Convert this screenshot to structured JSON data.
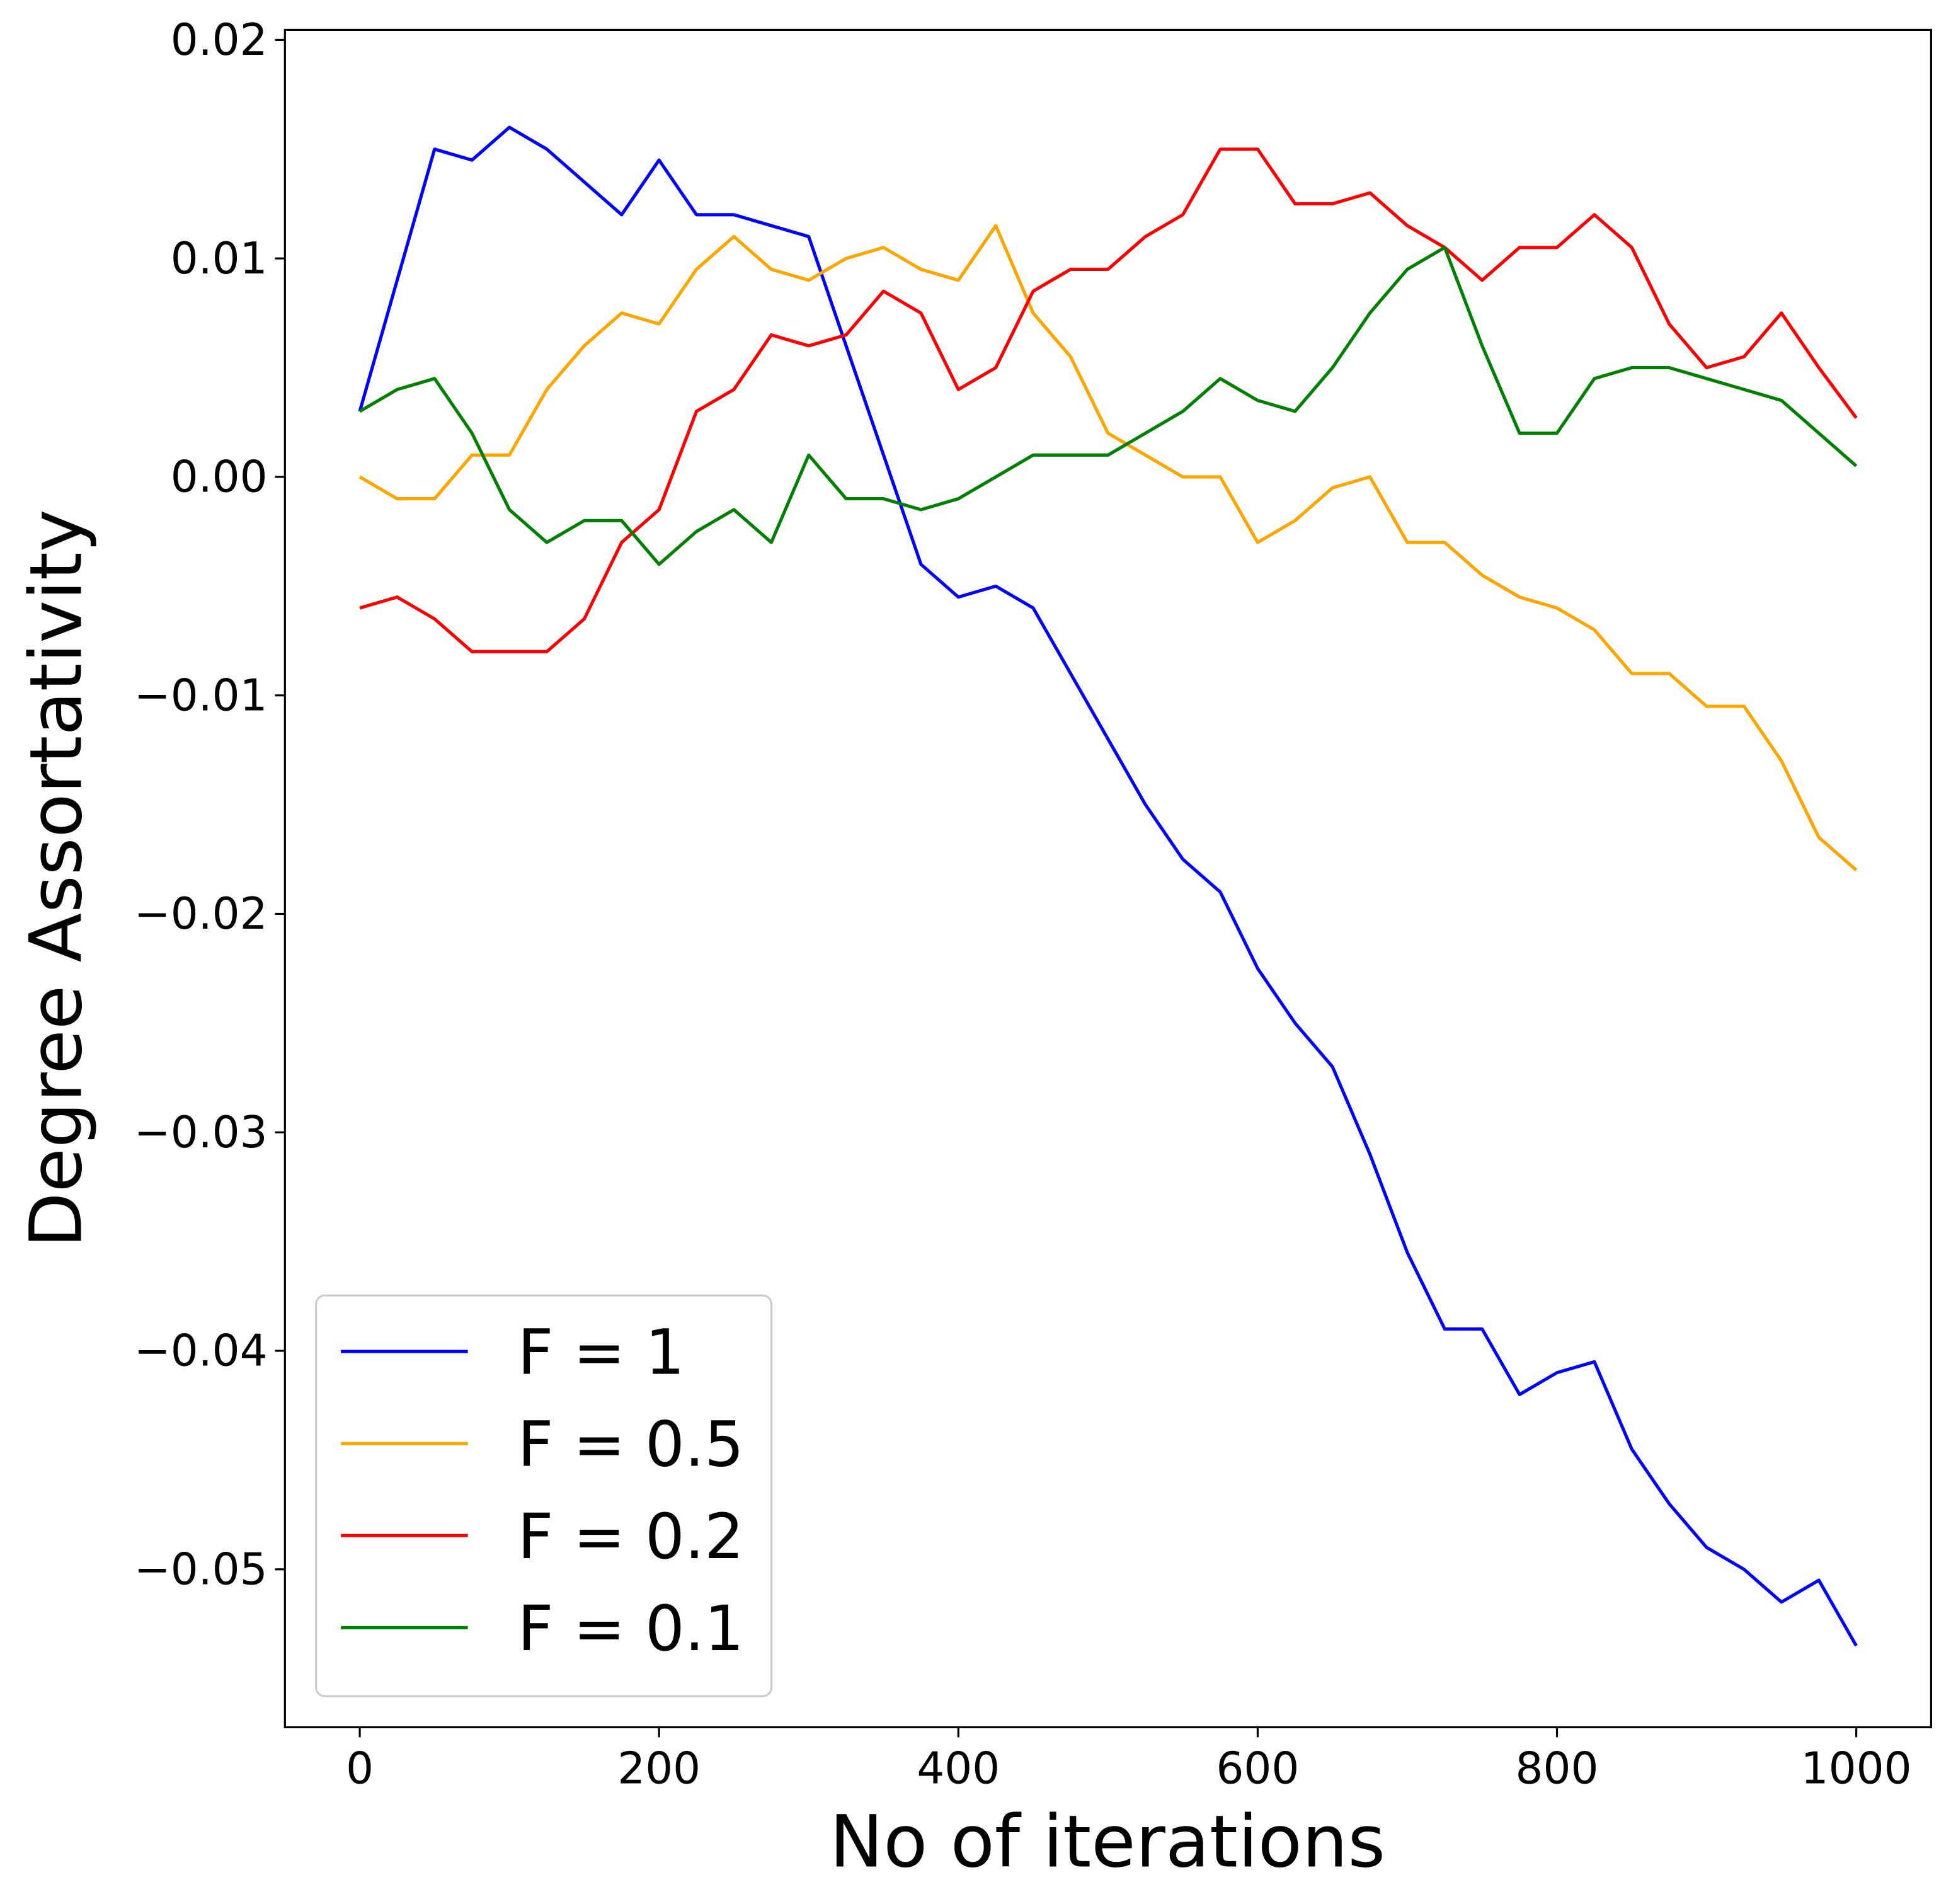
{
  "chart_data": {
    "type": "line",
    "xlabel": "No of iterations",
    "ylabel": "Degree Assortativity",
    "x": [
      0,
      25,
      50,
      75,
      100,
      125,
      150,
      175,
      200,
      225,
      250,
      275,
      300,
      325,
      350,
      375,
      400,
      425,
      450,
      475,
      500,
      525,
      550,
      575,
      600,
      625,
      650,
      675,
      700,
      725,
      750,
      775,
      800,
      825,
      850,
      875,
      900,
      925,
      950,
      975,
      1000
    ],
    "series": [
      {
        "name": "F = 1",
        "color": "#0000ff",
        "values": [
          0.003,
          0.009,
          0.015,
          0.0145,
          0.016,
          0.015,
          0.0135,
          0.012,
          0.0145,
          0.012,
          0.012,
          0.0115,
          0.011,
          0.006,
          0.001,
          -0.004,
          -0.0055,
          -0.005,
          -0.006,
          -0.009,
          -0.012,
          -0.015,
          -0.0175,
          -0.019,
          -0.0225,
          -0.025,
          -0.027,
          -0.031,
          -0.0355,
          -0.039,
          -0.039,
          -0.042,
          -0.041,
          -0.0405,
          -0.0445,
          -0.047,
          -0.049,
          -0.05,
          -0.0515,
          -0.0505,
          -0.0535
        ]
      },
      {
        "name": "F = 0.5",
        "color": "#ffa500",
        "values": [
          0,
          -0.001,
          -0.001,
          0.001,
          0.001,
          0.004,
          0.006,
          0.0075,
          0.007,
          0.0095,
          0.011,
          0.0095,
          0.009,
          0.01,
          0.0105,
          0.0095,
          0.009,
          0.0115,
          0.0075,
          0.0055,
          0.002,
          0.001,
          0,
          0,
          -0.003,
          -0.002,
          -0.0005,
          0,
          -0.003,
          -0.003,
          -0.0045,
          -0.0055,
          -0.006,
          -0.007,
          -0.009,
          -0.009,
          -0.0105,
          -0.0105,
          -0.013,
          -0.0165,
          -0.018
        ]
      },
      {
        "name": "F = 0.2",
        "color": "#ff0000",
        "values": [
          -0.006,
          -0.0055,
          -0.0065,
          -0.008,
          -0.008,
          -0.008,
          -0.0065,
          -0.003,
          -0.0015,
          0.003,
          0.004,
          0.0065,
          0.006,
          0.0065,
          0.0085,
          0.0075,
          0.004,
          0.005,
          0.0085,
          0.0095,
          0.0095,
          0.011,
          0.012,
          0.015,
          0.015,
          0.0125,
          0.0125,
          0.013,
          0.0115,
          0.0105,
          0.009,
          0.0105,
          0.0105,
          0.012,
          0.0105,
          0.007,
          0.005,
          0.0055,
          0.0075,
          0.005,
          0.0027
        ]
      },
      {
        "name": "F = 0.1",
        "color": "#008000",
        "values": [
          0.003,
          0.004,
          0.0045,
          0.002,
          -0.0015,
          -0.003,
          -0.002,
          -0.002,
          -0.004,
          -0.0025,
          -0.0015,
          -0.003,
          0.001,
          -0.001,
          -0.001,
          -0.0015,
          -0.001,
          0,
          0.001,
          0.001,
          0.001,
          0.002,
          0.003,
          0.0045,
          0.0035,
          0.003,
          0.005,
          0.0075,
          0.0095,
          0.0105,
          0.006,
          0.002,
          0.002,
          0.0045,
          0.005,
          0.005,
          0.0045,
          0.004,
          0.0035,
          0.002,
          0.0005
        ]
      }
    ],
    "xlim": [
      -50,
      1050
    ],
    "xticks": [
      0,
      200,
      400,
      600,
      800,
      1000
    ],
    "ylim": [
      -0.05723,
      0.02046
    ],
    "yticks": [
      0.02,
      0.01,
      {
        "value": 0,
        "label": "0.00"
      },
      {
        "value": -0.01,
        "label": "−0.01"
      },
      {
        "value": -0.02,
        "label": "−0.02"
      },
      {
        "value": -0.03,
        "label": "−0.03"
      },
      {
        "value": -0.04,
        "label": "−0.04"
      },
      {
        "value": -0.05,
        "label": "−0.05"
      }
    ],
    "legend": "lower left",
    "grid": false
  }
}
